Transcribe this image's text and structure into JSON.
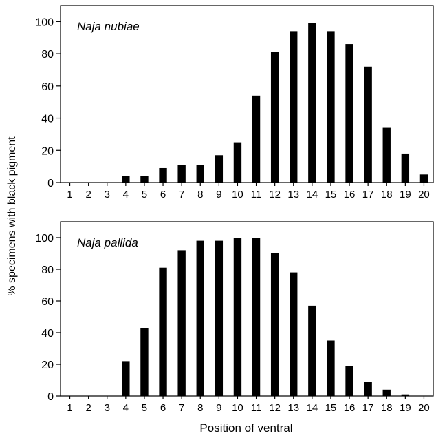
{
  "figure": {
    "ylabel": "% specimens with black pigment",
    "xlabel": "Position of ventral"
  },
  "chart_data": [
    {
      "type": "bar",
      "title": "Naja nubiae",
      "categories": [
        "1",
        "2",
        "3",
        "4",
        "5",
        "6",
        "7",
        "8",
        "9",
        "10",
        "11",
        "12",
        "13",
        "14",
        "15",
        "16",
        "17",
        "18",
        "19",
        "20"
      ],
      "values": [
        0,
        0,
        0,
        4,
        4,
        9,
        11,
        11,
        17,
        25,
        54,
        81,
        94,
        99,
        94,
        86,
        72,
        34,
        18,
        5
      ],
      "ylim": [
        0,
        110
      ],
      "yticks": [
        0,
        20,
        40,
        60,
        80,
        100
      ],
      "grid": false,
      "color": "#000000"
    },
    {
      "type": "bar",
      "title": "Naja pallida",
      "categories": [
        "1",
        "2",
        "3",
        "4",
        "5",
        "6",
        "7",
        "8",
        "9",
        "10",
        "11",
        "12",
        "13",
        "14",
        "15",
        "16",
        "17",
        "18",
        "19",
        "20"
      ],
      "values": [
        0,
        0,
        0,
        22,
        43,
        81,
        92,
        98,
        98,
        100,
        100,
        90,
        78,
        57,
        35,
        19,
        9,
        4,
        1,
        0
      ],
      "ylim": [
        0,
        110
      ],
      "yticks": [
        0,
        20,
        40,
        60,
        80,
        100
      ],
      "grid": false,
      "color": "#000000"
    }
  ]
}
